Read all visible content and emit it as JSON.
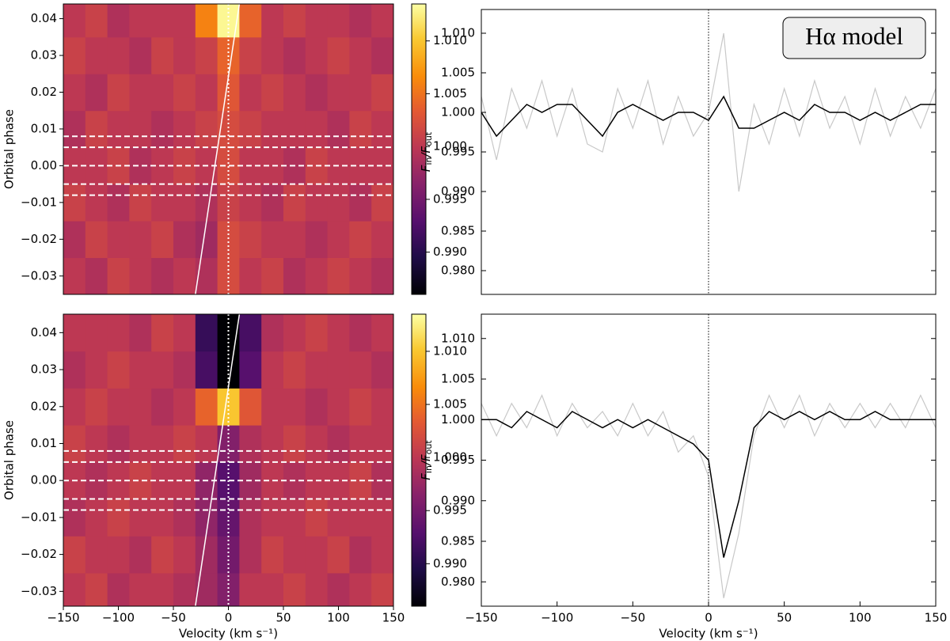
{
  "chart_data": [
    {
      "type": "heatmap",
      "ylabel": "Orbital phase",
      "colormap": "inferno",
      "x_edges": [
        -150,
        -130,
        -110,
        -90,
        -70,
        -50,
        -30,
        -10,
        10,
        30,
        50,
        70,
        90,
        110,
        130,
        150
      ],
      "y_edges": [
        -0.035,
        -0.025,
        -0.015,
        -0.005,
        0.005,
        0.015,
        0.025,
        0.035,
        0.044
      ],
      "values": [
        [
          1.0,
          0.999,
          1.001,
          1.0,
          0.999,
          1.0,
          0.999,
          1.002,
          1.0,
          1.001,
          0.999,
          1.0,
          1.001,
          1.0,
          0.999
        ],
        [
          0.999,
          1.001,
          1.0,
          1.0,
          1.001,
          0.999,
          0.998,
          1.002,
          1.001,
          1.0,
          1.0,
          0.999,
          1.0,
          1.001,
          1.0
        ],
        [
          1.001,
          1.0,
          0.999,
          1.001,
          1.0,
          1.0,
          0.999,
          1.001,
          1.0,
          0.999,
          1.001,
          1.0,
          1.0,
          0.999,
          1.001
        ],
        [
          1.0,
          1.0,
          1.001,
          0.999,
          1.0,
          1.001,
          1.0,
          1.002,
          1.0,
          1.0,
          0.999,
          1.001,
          1.0,
          1.0,
          1.0
        ],
        [
          0.999,
          1.001,
          1.0,
          1.0,
          0.999,
          1.0,
          1.001,
          1.002,
          1.001,
          1.0,
          1.0,
          1.0,
          0.999,
          1.001,
          1.0
        ],
        [
          1.0,
          0.999,
          1.001,
          1.0,
          1.0,
          1.001,
          1.0,
          1.003,
          1.0,
          1.001,
          1.0,
          0.999,
          1.0,
          1.0,
          1.001
        ],
        [
          1.001,
          1.0,
          1.0,
          0.999,
          1.001,
          1.0,
          1.001,
          1.004,
          1.001,
          1.0,
          0.999,
          1.0,
          1.001,
          1.0,
          0.999
        ],
        [
          1.0,
          1.001,
          0.999,
          1.0,
          1.0,
          1.0,
          1.006,
          1.013,
          1.004,
          1.0,
          1.001,
          1.0,
          1.0,
          0.999,
          1.0
        ]
      ],
      "xlim": [
        -150,
        150
      ],
      "ylim": [
        -0.035,
        0.044
      ],
      "yticks": [
        {
          "value": -0.03,
          "label": "−0.03"
        },
        {
          "value": -0.02,
          "label": "−0.02"
        },
        {
          "value": -0.01,
          "label": "−0.01"
        },
        {
          "value": 0,
          "label": "0.00"
        },
        0.01,
        0.02,
        0.03,
        0.04
      ],
      "clim": [
        0.986,
        1.0135
      ],
      "cticks": [
        {
          "value": 0.99,
          "label": "0.990"
        },
        {
          "value": 0.995,
          "label": "0.995"
        },
        {
          "value": 1.0,
          "label": "1.000"
        },
        {
          "value": 1.005,
          "label": "1.005"
        },
        {
          "value": 1.01,
          "label": "1.010"
        }
      ],
      "hlines": [
        0.008,
        0.005,
        0.0,
        -0.005,
        -0.008
      ],
      "vline": 0,
      "trajectory": {
        "x": [
          -30,
          10
        ],
        "y": [
          -0.035,
          0.044
        ]
      }
    },
    {
      "type": "line",
      "ylabel": [
        "F",
        "in",
        "/F",
        "out"
      ],
      "annotation": "Hα model",
      "x": [
        -150,
        -140,
        -130,
        -120,
        -110,
        -100,
        -90,
        -80,
        -70,
        -60,
        -50,
        -40,
        -30,
        -20,
        -10,
        0,
        10,
        20,
        30,
        40,
        50,
        60,
        70,
        80,
        90,
        100,
        110,
        120,
        130,
        140,
        150
      ],
      "series": [
        {
          "color": "#c8c8c8",
          "values": [
            1.002,
            0.994,
            1.003,
            0.998,
            1.004,
            0.997,
            1.003,
            0.996,
            0.995,
            1.003,
            0.998,
            1.004,
            0.996,
            1.002,
            0.997,
            1.0,
            1.01,
            0.99,
            1.001,
            0.996,
            1.003,
            0.997,
            1.004,
            0.998,
            1.002,
            0.996,
            1.003,
            0.997,
            1.002,
            0.998,
            1.003
          ]
        },
        {
          "color": "#000000",
          "values": [
            1.0,
            0.997,
            0.999,
            1.001,
            1.0,
            1.001,
            1.001,
            0.999,
            0.997,
            1.0,
            1.001,
            1.0,
            0.999,
            1.0,
            1.0,
            0.999,
            1.002,
            0.998,
            0.998,
            0.999,
            1.0,
            0.999,
            1.001,
            1.0,
            1.0,
            0.999,
            1.0,
            0.999,
            1.0,
            1.001,
            1.001
          ]
        }
      ],
      "xlim": [
        -150,
        150
      ],
      "ylim": [
        0.977,
        1.013
      ],
      "yticks": [
        {
          "value": 0.98,
          "label": "0.980"
        },
        {
          "value": 0.985,
          "label": "0.985"
        },
        {
          "value": 0.99,
          "label": "0.990"
        },
        {
          "value": 0.995,
          "label": "0.995"
        },
        {
          "value": 1.0,
          "label": "1.000"
        },
        {
          "value": 1.005,
          "label": "1.005"
        },
        {
          "value": 1.01,
          "label": "1.010"
        }
      ],
      "vline": 0
    },
    {
      "type": "heatmap",
      "ylabel": "Orbital phase",
      "xlabel": "Velocity (km s⁻¹)",
      "colormap": "inferno",
      "x_edges": [
        -150,
        -130,
        -110,
        -90,
        -70,
        -50,
        -30,
        -10,
        10,
        30,
        50,
        70,
        90,
        110,
        130,
        150
      ],
      "y_edges": [
        -0.035,
        -0.025,
        -0.015,
        -0.005,
        0.005,
        0.015,
        0.025,
        0.035,
        0.045
      ],
      "values": [
        [
          1.0,
          1.001,
          0.999,
          1.0,
          1.0,
          0.999,
          0.998,
          0.996,
          1.0,
          1.0,
          1.001,
          1.0,
          0.999,
          1.0,
          1.001
        ],
        [
          1.001,
          1.0,
          1.0,
          0.999,
          1.001,
          1.0,
          0.998,
          0.995,
          0.999,
          1.001,
          1.0,
          1.0,
          1.001,
          0.999,
          1.0
        ],
        [
          0.999,
          1.0,
          1.001,
          1.0,
          1.0,
          0.999,
          0.997,
          0.994,
          0.999,
          1.0,
          1.0,
          1.001,
          1.0,
          1.0,
          1.0
        ],
        [
          1.0,
          0.999,
          1.0,
          1.001,
          1.0,
          1.0,
          0.997,
          0.993,
          0.998,
          1.0,
          0.999,
          1.0,
          1.0,
          1.001,
          0.999
        ],
        [
          1.001,
          1.0,
          0.999,
          1.0,
          1.0,
          1.001,
          1.0,
          0.996,
          0.999,
          1.0,
          1.001,
          1.0,
          0.999,
          1.0,
          1.0
        ],
        [
          1.0,
          1.001,
          1.0,
          1.0,
          0.999,
          1.0,
          1.004,
          1.01,
          1.003,
          1.0,
          1.0,
          0.999,
          1.0,
          1.001,
          1.0
        ],
        [
          0.999,
          1.0,
          1.001,
          1.0,
          1.0,
          0.999,
          0.992,
          0.986,
          0.993,
          1.0,
          1.001,
          1.0,
          1.0,
          1.0,
          0.999
        ],
        [
          1.0,
          1.0,
          1.0,
          0.999,
          1.001,
          1.0,
          0.991,
          0.986,
          0.992,
          0.999,
          1.0,
          1.001,
          1.0,
          0.999,
          1.0
        ]
      ],
      "xlim": [
        -150,
        150
      ],
      "ylim": [
        -0.034,
        0.045
      ],
      "xticks": [
        {
          "value": -150,
          "label": "−150"
        },
        {
          "value": -100,
          "label": "−100"
        },
        {
          "value": -50,
          "label": "−50"
        },
        0,
        50,
        100,
        150
      ],
      "yticks": [
        {
          "value": -0.03,
          "label": "−0.03"
        },
        {
          "value": -0.02,
          "label": "−0.02"
        },
        {
          "value": -0.01,
          "label": "−0.01"
        },
        {
          "value": 0,
          "label": "0.00"
        },
        0.01,
        0.02,
        0.03,
        0.04
      ],
      "clim": [
        0.986,
        1.0135
      ],
      "cticks": [
        {
          "value": 0.99,
          "label": "0.990"
        },
        {
          "value": 0.995,
          "label": "0.995"
        },
        {
          "value": 1.0,
          "label": "1.000"
        },
        {
          "value": 1.005,
          "label": "1.005"
        },
        {
          "value": 1.01,
          "label": "1.010"
        }
      ],
      "hlines": [
        0.008,
        0.005,
        0.0,
        -0.005,
        -0.008
      ],
      "vline": 0,
      "trajectory": {
        "x": [
          -30,
          10
        ],
        "y": [
          -0.034,
          0.045
        ]
      }
    },
    {
      "type": "line",
      "ylabel": [
        "F",
        "in",
        "/F",
        "out"
      ],
      "xlabel": "Velocity (km s⁻¹)",
      "x": [
        -150,
        -140,
        -130,
        -120,
        -110,
        -100,
        -90,
        -80,
        -70,
        -60,
        -50,
        -40,
        -30,
        -20,
        -10,
        0,
        10,
        20,
        30,
        40,
        50,
        60,
        70,
        80,
        90,
        100,
        110,
        120,
        130,
        140,
        150
      ],
      "series": [
        {
          "color": "#c8c8c8",
          "values": [
            1.002,
            0.998,
            1.002,
            0.999,
            1.003,
            0.998,
            1.002,
            0.999,
            1.001,
            0.998,
            1.002,
            0.998,
            1.001,
            0.996,
            0.998,
            0.993,
            0.978,
            0.986,
            0.998,
            1.003,
            0.999,
            1.003,
            0.998,
            1.002,
            0.999,
            1.002,
            0.999,
            1.002,
            0.999,
            1.003,
            0.999
          ]
        },
        {
          "color": "#000000",
          "values": [
            1.0,
            1.0,
            0.999,
            1.001,
            1.0,
            0.999,
            1.001,
            1.0,
            0.999,
            1.0,
            0.999,
            1.0,
            0.999,
            0.998,
            0.997,
            0.995,
            0.983,
            0.99,
            0.999,
            1.001,
            1.0,
            1.001,
            1.0,
            1.001,
            1.0,
            1.0,
            1.001,
            1.0,
            1.0,
            1.0,
            1.0
          ]
        }
      ],
      "xlim": [
        -150,
        150
      ],
      "ylim": [
        0.977,
        1.013
      ],
      "xticks": [
        {
          "value": -150,
          "label": "−150"
        },
        {
          "value": -100,
          "label": "−100"
        },
        {
          "value": -50,
          "label": "−50"
        },
        0,
        50,
        100,
        150
      ],
      "yticks": [
        {
          "value": 0.98,
          "label": "0.980"
        },
        {
          "value": 0.985,
          "label": "0.985"
        },
        {
          "value": 0.99,
          "label": "0.990"
        },
        {
          "value": 0.995,
          "label": "0.995"
        },
        {
          "value": 1.0,
          "label": "1.000"
        },
        {
          "value": 1.005,
          "label": "1.005"
        },
        {
          "value": 1.01,
          "label": "1.010"
        }
      ],
      "vline": 0
    }
  ]
}
